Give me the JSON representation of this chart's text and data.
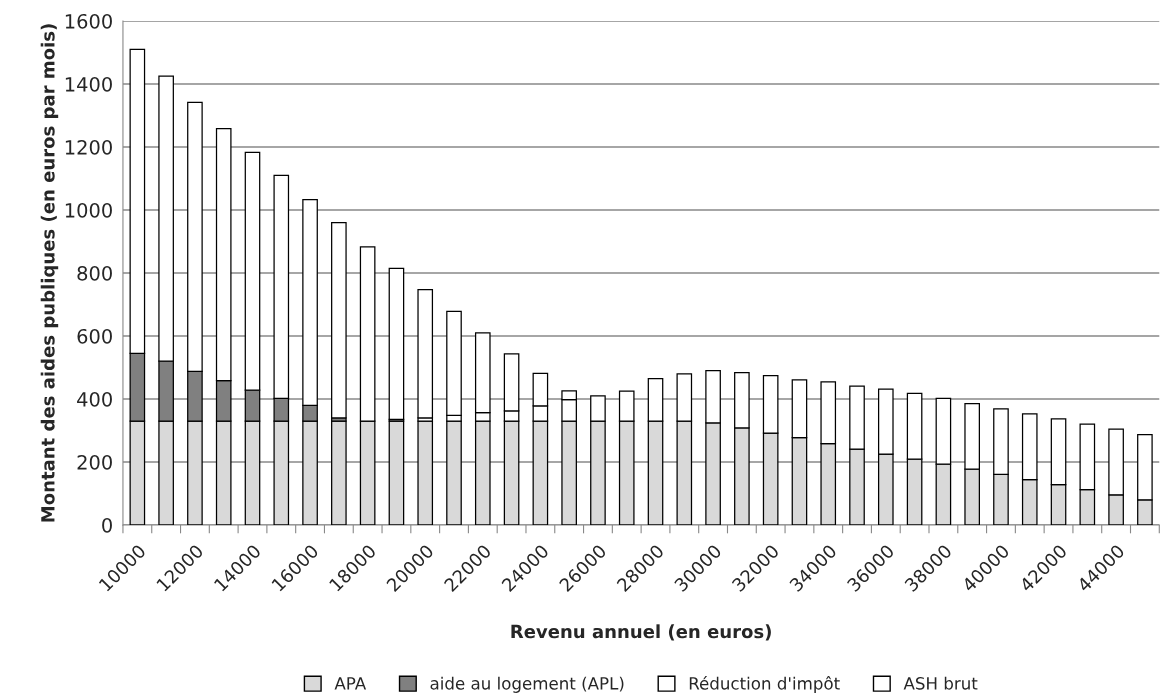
{
  "chart_data": {
    "type": "bar",
    "stacked": true,
    "xlabel": "Revenu annuel (en euros)",
    "ylabel": "Montant des aides publiques (en euros par mois)",
    "categories": [
      "10000",
      null,
      "12000",
      null,
      "14000",
      null,
      "16000",
      null,
      "18000",
      null,
      "20000",
      null,
      "22000",
      null,
      "24000",
      null,
      "26000",
      null,
      "28000",
      null,
      "30000",
      null,
      "32000",
      null,
      "34000",
      null,
      "36000",
      null,
      "38000",
      null,
      "40000",
      null,
      "42000",
      null,
      "44000",
      null
    ],
    "series": [
      {
        "name": "APA",
        "color": "#d9d9d9",
        "values": [
          330,
          330,
          330,
          330,
          330,
          330,
          330,
          330,
          330,
          330,
          330,
          330,
          330,
          330,
          330,
          330,
          330,
          330,
          330,
          330,
          324,
          308,
          292,
          277,
          258,
          241,
          225,
          209,
          193,
          177,
          161,
          144,
          128,
          112,
          96,
          80
        ]
      },
      {
        "name": "aide au logement (APL)",
        "color": "#808080",
        "values": [
          215,
          190,
          158,
          128,
          98,
          72,
          50,
          10,
          0,
          5,
          0,
          0,
          0,
          0,
          0,
          0,
          0,
          0,
          0,
          0,
          0,
          0,
          0,
          0,
          0,
          0,
          0,
          0,
          0,
          0,
          0,
          0,
          0,
          0,
          0,
          0
        ]
      },
      {
        "name": "Réduction d'impôt",
        "color": "#ffffff",
        "values": [
          0,
          0,
          0,
          0,
          0,
          0,
          0,
          0,
          0,
          0,
          10,
          18,
          27,
          32,
          48,
          68,
          80,
          95,
          135,
          150,
          166,
          176,
          182,
          184,
          196,
          200,
          206,
          209,
          209,
          208,
          208,
          209,
          209,
          208,
          208,
          207
        ]
      },
      {
        "name": "ASH brut",
        "color": "#ffffff",
        "values": [
          965,
          905,
          854,
          800,
          755,
          708,
          653,
          620,
          553,
          480,
          407,
          330,
          253,
          181,
          103,
          28,
          0,
          0,
          0,
          0,
          0,
          0,
          0,
          0,
          0,
          0,
          0,
          0,
          0,
          0,
          0,
          0,
          0,
          0,
          0,
          0
        ]
      }
    ],
    "ylim": [
      0,
      1600
    ],
    "yticks": [
      0,
      200,
      400,
      600,
      800,
      1000,
      1200,
      1400,
      1600
    ],
    "grid": "y",
    "legend": "bottom"
  }
}
